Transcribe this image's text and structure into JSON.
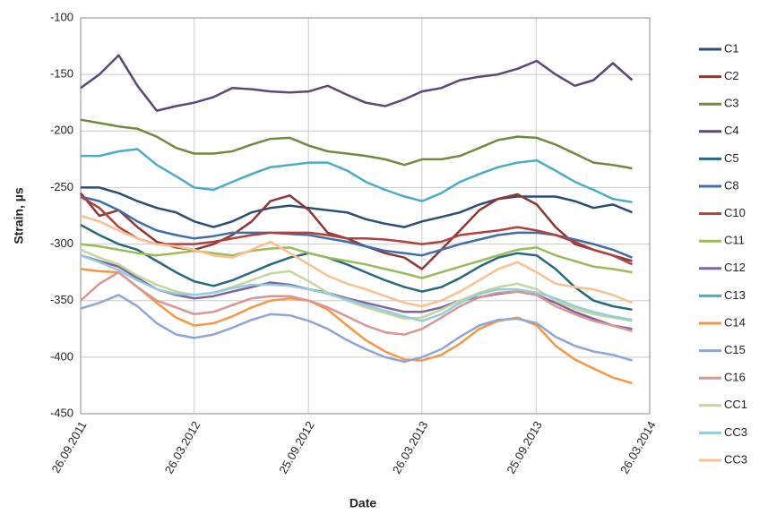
{
  "chart_data": {
    "type": "line",
    "x_label": "Date",
    "y_label": "Strain, µs",
    "x": [
      "26.09.2011",
      "26.10.2011",
      "26.11.2011",
      "26.12.2011",
      "26.01.2012",
      "26.02.2012",
      "26.03.2012",
      "26.04.2012",
      "26.05.2012",
      "26.06.2012",
      "26.07.2012",
      "26.08.2012",
      "26.09.2012",
      "26.10.2012",
      "26.11.2012",
      "26.12.2012",
      "26.01.2013",
      "26.02.2013",
      "26.03.2013",
      "26.04.2013",
      "26.05.2013",
      "26.06.2013",
      "26.07.2013",
      "26.08.2013",
      "26.09.2013",
      "26.10.2013",
      "26.11.2013",
      "26.12.2013",
      "26.01.2014",
      "26.02.2014"
    ],
    "xlim": [
      "26.09.2011",
      "26.03.2014"
    ],
    "xticks": [
      "26.09.2011",
      "26.03.2012",
      "25.09.2012",
      "26.03.2013",
      "25.09.2013",
      "26.03.2014"
    ],
    "ylim": [
      -450,
      -100
    ],
    "yticks": [
      -450,
      -400,
      -350,
      -300,
      -250,
      -200,
      -150,
      -100
    ],
    "grid": true,
    "legend": "right",
    "series": [
      {
        "name": "C1",
        "color": "#2c4d75",
        "values": [
          -250,
          -250,
          -255,
          -262,
          -268,
          -272,
          -280,
          -285,
          -280,
          -272,
          -268,
          -266,
          -268,
          -270,
          -272,
          -278,
          -282,
          -285,
          -280,
          -276,
          -272,
          -265,
          -260,
          -258,
          -258,
          -258,
          -262,
          -268,
          -265,
          -272
        ]
      },
      {
        "name": "C2",
        "color": "#8c3836",
        "values": [
          -255,
          -275,
          -270,
          -285,
          -298,
          -303,
          -305,
          -300,
          -292,
          -280,
          -262,
          -257,
          -270,
          -290,
          -295,
          -302,
          -308,
          -312,
          -322,
          -305,
          -288,
          -270,
          -260,
          -256,
          -265,
          -285,
          -300,
          -305,
          -310,
          -315
        ]
      },
      {
        "name": "C3",
        "color": "#71893f",
        "values": [
          -190,
          -193,
          -196,
          -198,
          -205,
          -215,
          -220,
          -220,
          -218,
          -212,
          -207,
          -206,
          -213,
          -218,
          -220,
          -222,
          -225,
          -230,
          -225,
          -225,
          -222,
          -215,
          -208,
          -205,
          -206,
          -212,
          -220,
          -228,
          -230,
          -233
        ]
      },
      {
        "name": "C4",
        "color": "#5c4776",
        "values": [
          -162,
          -150,
          -133,
          -160,
          -182,
          -178,
          -175,
          -170,
          -162,
          -163,
          -165,
          -166,
          -165,
          -160,
          -168,
          -175,
          -178,
          -172,
          -165,
          -162,
          -155,
          -152,
          -150,
          -145,
          -138,
          -150,
          -160,
          -155,
          -140,
          -155
        ]
      },
      {
        "name": "C5",
        "color": "#276a7c",
        "values": [
          -283,
          -292,
          -300,
          -305,
          -315,
          -325,
          -333,
          -337,
          -332,
          -325,
          -318,
          -312,
          -308,
          -312,
          -318,
          -325,
          -332,
          -338,
          -342,
          -338,
          -330,
          -320,
          -312,
          -308,
          -310,
          -322,
          -338,
          -350,
          -355,
          -358
        ]
      },
      {
        "name": "C8",
        "color": "#3f6eaa",
        "values": [
          -258,
          -262,
          -270,
          -280,
          -288,
          -292,
          -295,
          -293,
          -290,
          -290,
          -290,
          -291,
          -292,
          -295,
          -298,
          -302,
          -306,
          -308,
          -310,
          -305,
          -300,
          -296,
          -292,
          -290,
          -290,
          -292,
          -296,
          -300,
          -305,
          -312
        ]
      },
      {
        "name": "C10",
        "color": "#b0413e",
        "values": [
          -258,
          -268,
          -285,
          -295,
          -300,
          -300,
          -300,
          -298,
          -295,
          -292,
          -290,
          -290,
          -290,
          -292,
          -295,
          -295,
          -296,
          -298,
          -300,
          -298,
          -292,
          -290,
          -288,
          -285,
          -288,
          -292,
          -298,
          -305,
          -310,
          -318
        ]
      },
      {
        "name": "C11",
        "color": "#9bbb59",
        "values": [
          -300,
          -302,
          -305,
          -308,
          -310,
          -308,
          -306,
          -308,
          -310,
          -306,
          -304,
          -303,
          -308,
          -312,
          -315,
          -318,
          -322,
          -326,
          -330,
          -325,
          -320,
          -315,
          -310,
          -305,
          -303,
          -310,
          -315,
          -320,
          -322,
          -325
        ]
      },
      {
        "name": "C12",
        "color": "#8064a2",
        "values": [
          -310,
          -315,
          -320,
          -330,
          -340,
          -345,
          -348,
          -346,
          -342,
          -338,
          -334,
          -336,
          -340,
          -343,
          -348,
          -352,
          -356,
          -360,
          -360,
          -356,
          -350,
          -347,
          -344,
          -342,
          -345,
          -352,
          -360,
          -366,
          -372,
          -375
        ]
      },
      {
        "name": "C13",
        "color": "#4bacc6",
        "values": [
          -222,
          -222,
          -218,
          -216,
          -230,
          -240,
          -250,
          -252,
          -245,
          -238,
          -232,
          -230,
          -228,
          -228,
          -235,
          -245,
          -252,
          -258,
          -262,
          -255,
          -245,
          -238,
          -232,
          -228,
          -226,
          -235,
          -245,
          -252,
          -260,
          -263
        ]
      },
      {
        "name": "C14",
        "color": "#f79646",
        "values": [
          -322,
          -324,
          -325,
          -338,
          -352,
          -365,
          -372,
          -370,
          -364,
          -356,
          -350,
          -348,
          -350,
          -358,
          -372,
          -385,
          -395,
          -402,
          -403,
          -398,
          -388,
          -375,
          -368,
          -365,
          -372,
          -390,
          -402,
          -410,
          -418,
          -423
        ]
      },
      {
        "name": "C15",
        "color": "#8ea5d5",
        "values": [
          -357,
          -352,
          -345,
          -355,
          -370,
          -380,
          -383,
          -380,
          -374,
          -367,
          -362,
          -363,
          -368,
          -375,
          -385,
          -393,
          -400,
          -404,
          -400,
          -393,
          -382,
          -372,
          -367,
          -366,
          -370,
          -382,
          -390,
          -395,
          -398,
          -403
        ]
      },
      {
        "name": "C16",
        "color": "#d99694",
        "values": [
          -350,
          -335,
          -325,
          -338,
          -350,
          -356,
          -362,
          -360,
          -354,
          -348,
          -346,
          -346,
          -350,
          -356,
          -364,
          -372,
          -378,
          -380,
          -375,
          -365,
          -355,
          -347,
          -343,
          -342,
          -345,
          -355,
          -362,
          -368,
          -372,
          -377
        ]
      },
      {
        "name": "CC1",
        "color": "#c3d69b",
        "values": [
          -305,
          -312,
          -318,
          -328,
          -336,
          -342,
          -345,
          -343,
          -338,
          -332,
          -326,
          -324,
          -333,
          -343,
          -350,
          -356,
          -361,
          -366,
          -365,
          -358,
          -350,
          -343,
          -338,
          -335,
          -340,
          -350,
          -357,
          -362,
          -365,
          -368
        ]
      },
      {
        "name": "CC3",
        "color": "#93cddd",
        "values": [
          -310,
          -316,
          -323,
          -332,
          -340,
          -344,
          -345,
          -343,
          -339,
          -336,
          -336,
          -337,
          -340,
          -344,
          -349,
          -354,
          -359,
          -364,
          -368,
          -362,
          -352,
          -344,
          -340,
          -340,
          -343,
          -348,
          -355,
          -360,
          -364,
          -367
        ]
      },
      {
        "name": "CC3",
        "color": "#fac08f",
        "values": [
          -275,
          -280,
          -288,
          -295,
          -300,
          -302,
          -305,
          -310,
          -312,
          -305,
          -298,
          -308,
          -318,
          -328,
          -335,
          -340,
          -346,
          -352,
          -355,
          -350,
          -342,
          -332,
          -322,
          -316,
          -325,
          -335,
          -338,
          -340,
          -345,
          -352
        ]
      }
    ]
  }
}
